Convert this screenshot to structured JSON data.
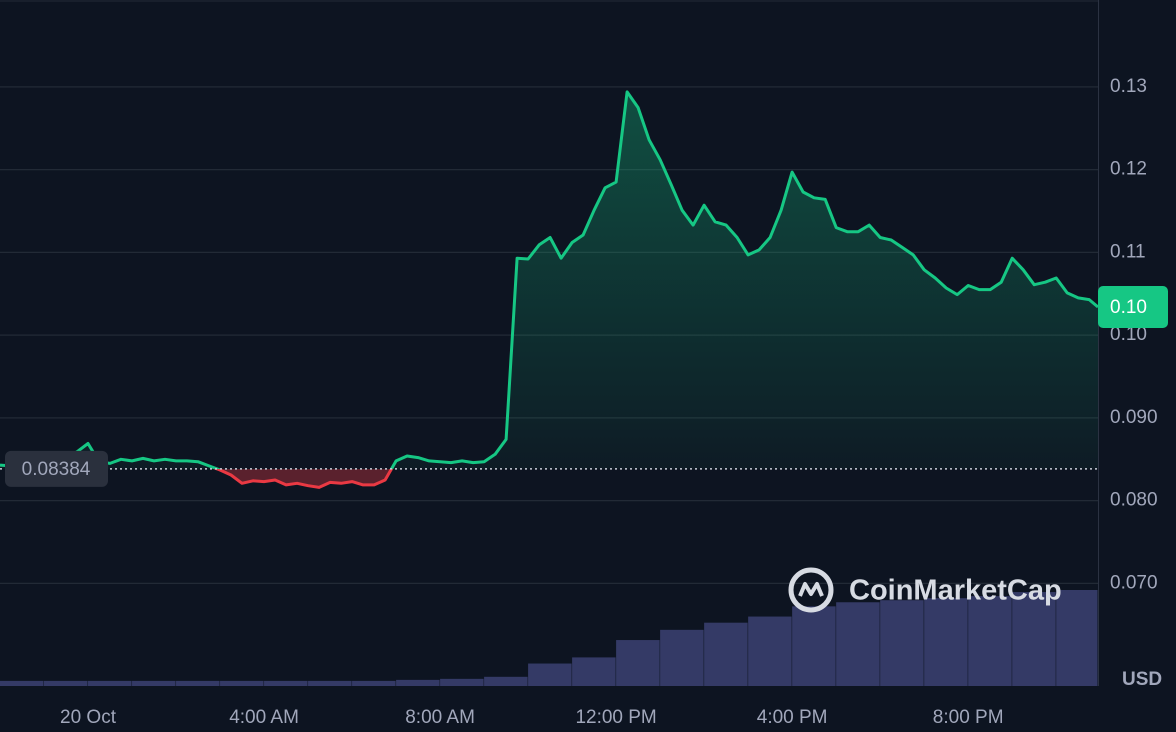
{
  "chart_data": {
    "type": "area",
    "x": [
      -2,
      -1.75,
      -1.5,
      -1.25,
      -1,
      -0.75,
      -0.5,
      -0.25,
      0,
      0.25,
      0.5,
      0.75,
      1,
      1.25,
      1.5,
      1.75,
      2,
      2.25,
      2.5,
      2.75,
      3,
      3.25,
      3.5,
      3.75,
      4,
      4.25,
      4.5,
      4.75,
      5,
      5.25,
      5.5,
      5.75,
      6,
      6.25,
      6.5,
      6.75,
      7,
      7.25,
      7.5,
      7.75,
      8,
      8.25,
      8.5,
      8.75,
      9,
      9.25,
      9.5,
      9.75,
      10,
      10.25,
      10.5,
      10.75,
      11,
      11.25,
      11.5,
      11.75,
      12,
      12.25,
      12.5,
      12.75,
      13,
      13.25,
      13.5,
      13.75,
      14,
      14.25,
      14.5,
      14.75,
      15,
      15.25,
      15.5,
      15.75,
      16,
      16.25,
      16.5,
      16.75,
      17,
      17.25,
      17.5,
      17.75,
      18,
      18.25,
      18.5,
      18.75,
      19,
      19.25,
      19.5,
      19.75,
      20,
      20.25,
      20.5,
      20.75,
      21,
      21.25,
      21.5,
      21.75,
      22,
      22.25,
      22.5,
      22.75,
      22.95
    ],
    "values": [
      0.0843,
      0.0842,
      0.084,
      0.0847,
      0.0846,
      0.085,
      0.0852,
      0.0859,
      0.0869,
      0.0847,
      0.0845,
      0.085,
      0.0848,
      0.0851,
      0.0848,
      0.085,
      0.0848,
      0.0848,
      0.0847,
      0.0842,
      0.0837,
      0.0831,
      0.0821,
      0.0824,
      0.0823,
      0.0825,
      0.0819,
      0.0821,
      0.0818,
      0.0816,
      0.0822,
      0.0821,
      0.0823,
      0.0819,
      0.0819,
      0.0825,
      0.0848,
      0.0854,
      0.0852,
      0.0848,
      0.0847,
      0.0846,
      0.0848,
      0.0846,
      0.0847,
      0.0856,
      0.0874,
      0.1093,
      0.1092,
      0.1109,
      0.1118,
      0.1093,
      0.1112,
      0.1121,
      0.1151,
      0.1178,
      0.1185,
      0.1294,
      0.1275,
      0.1236,
      0.1212,
      0.1182,
      0.1151,
      0.1133,
      0.1157,
      0.1137,
      0.1133,
      0.1118,
      0.1097,
      0.1103,
      0.1118,
      0.1151,
      0.1197,
      0.1173,
      0.1166,
      0.1164,
      0.113,
      0.1125,
      0.1125,
      0.1133,
      0.1118,
      0.1115,
      0.1106,
      0.1097,
      0.1079,
      0.1069,
      0.1057,
      0.1049,
      0.106,
      0.1055,
      0.1055,
      0.1064,
      0.1093,
      0.1079,
      0.1061,
      0.1064,
      0.1069,
      0.1051,
      0.1045,
      0.1043,
      0.1034
    ],
    "xlim": [
      -2,
      22.95
    ],
    "xticks": [
      {
        "value": 0,
        "label": "20 Oct"
      },
      {
        "value": 4,
        "label": "4:00 AM"
      },
      {
        "value": 8,
        "label": "8:00 AM"
      },
      {
        "value": 12,
        "label": "12:00 PM"
      },
      {
        "value": 16,
        "label": "4:00 PM"
      },
      {
        "value": 20,
        "label": "8:00 PM"
      }
    ],
    "ylim": [
      0.0576,
      0.1405
    ],
    "yticks": [
      0.13,
      0.12,
      0.11,
      {
        "value": 0.1,
        "label": "0.10"
      },
      {
        "value": 0.09,
        "label": "0.090"
      },
      {
        "value": 0.08,
        "label": "0.080"
      },
      {
        "value": 0.07,
        "label": "0.070"
      }
    ],
    "grid": true,
    "baseline": 0.08384,
    "colors": {
      "above": "#16c784",
      "below": "#ea3943"
    },
    "current_price": {
      "value": 0.1034,
      "label": "0.10"
    },
    "unit_label": "USD",
    "watermark": "CoinMarketCap",
    "volume": {
      "color": "#343a66",
      "x": [
        -2,
        -1,
        0,
        1,
        2,
        3,
        4,
        5,
        6,
        7,
        8,
        9,
        10,
        11,
        12,
        13,
        14,
        15,
        16,
        17,
        18,
        19,
        20,
        21,
        22
      ],
      "values": [
        5,
        5,
        5,
        5,
        5,
        5,
        5,
        5,
        5,
        6,
        7,
        9,
        22,
        28,
        45,
        55,
        62,
        68,
        78,
        82,
        84,
        86,
        88,
        92,
        94
      ]
    }
  }
}
